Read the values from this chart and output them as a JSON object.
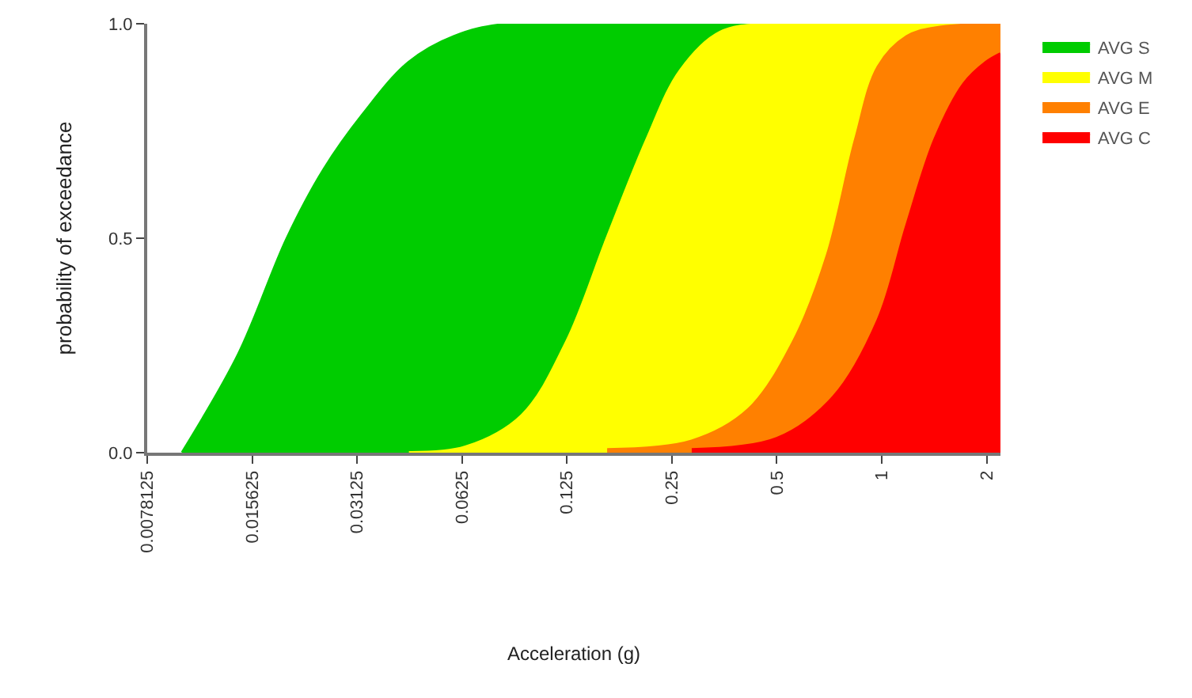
{
  "chart_data": {
    "type": "area",
    "xlabel": "Acceleration (g)",
    "ylabel": "probability of exceedance",
    "log": "x",
    "grid": false,
    "legend": "right",
    "marker": "none",
    "xlim": [
      0.0078125,
      2.19
    ],
    "xticks": [
      0.0078125,
      0.015625,
      0.03125,
      0.0625,
      0.125,
      0.25,
      0.5,
      1,
      2
    ],
    "ylim": [
      0,
      1
    ],
    "yticks": [
      {
        "value": 0,
        "label": "0.0"
      },
      {
        "value": 0.5,
        "label": "0.5"
      },
      {
        "value": 1,
        "label": "1.0"
      }
    ],
    "series": [
      {
        "name": "AVG S",
        "color": "#00cc00",
        "x": [
          0.00985,
          0.0143,
          0.0197,
          0.0251,
          0.0326,
          0.044,
          0.0592,
          0.086,
          2.19
        ],
        "values": [
          0,
          0.23,
          0.5,
          0.66,
          0.79,
          0.91,
          0.97,
          1,
          1
        ]
      },
      {
        "name": "AVG M",
        "color": "#ffff00",
        "x": [
          0.044,
          0.0639,
          0.0929,
          0.125,
          0.163,
          0.212,
          0.264,
          0.344,
          0.5,
          2.19
        ],
        "values": [
          0,
          0.013,
          0.087,
          0.26,
          0.5,
          0.73,
          0.89,
          0.98,
          1,
          1
        ]
      },
      {
        "name": "AVG E",
        "color": "#ff8000",
        "x": [
          0.163,
          0.285,
          0.414,
          0.559,
          0.698,
          0.841,
          0.977,
          1.18,
          1.42,
          2.19
        ],
        "values": [
          0.007,
          0.027,
          0.1,
          0.26,
          0.46,
          0.73,
          0.9,
          0.97,
          0.99,
          1
        ]
      },
      {
        "name": "AVG C",
        "color": "#ff0000",
        "x": [
          0.285,
          0.5,
          0.727,
          0.977,
          1.18,
          1.42,
          1.72,
          1.99,
          2.19
        ],
        "values": [
          0.007,
          0.033,
          0.13,
          0.31,
          0.53,
          0.73,
          0.86,
          0.91,
          0.93
        ]
      }
    ]
  }
}
